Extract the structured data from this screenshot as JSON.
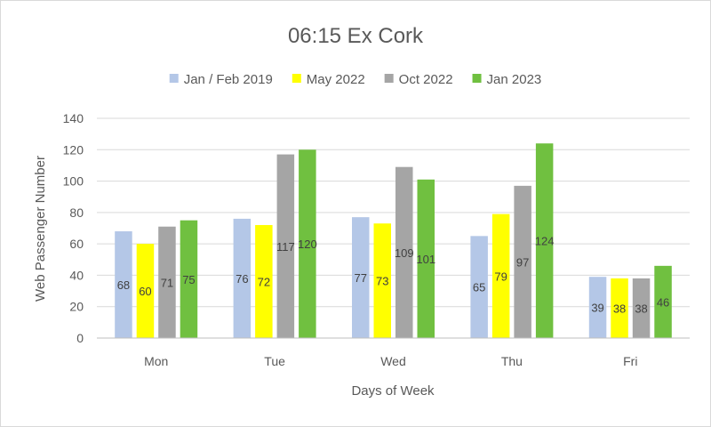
{
  "chart_data": {
    "type": "bar",
    "title": "06:15 Ex Cork",
    "xlabel": "Days of Week",
    "ylabel": "Web Passenger Number",
    "ylim": [
      0,
      140
    ],
    "yticks": [
      0,
      20,
      40,
      60,
      80,
      100,
      120,
      140
    ],
    "grid": true,
    "legend_position": "top",
    "categories": [
      "Mon",
      "Tue",
      "Wed",
      "Thu",
      "Fri"
    ],
    "series": [
      {
        "name": "Jan / Feb 2019",
        "color": "#b4c7e7",
        "values": [
          68,
          76,
          77,
          65,
          39
        ]
      },
      {
        "name": "May 2022",
        "color": "#ffff00",
        "values": [
          60,
          72,
          73,
          79,
          38
        ]
      },
      {
        "name": "Oct 2022",
        "color": "#a5a5a5",
        "values": [
          71,
          117,
          109,
          97,
          38
        ]
      },
      {
        "name": "Jan 2023",
        "color": "#70c040",
        "values": [
          75,
          120,
          101,
          124,
          46
        ]
      }
    ]
  }
}
